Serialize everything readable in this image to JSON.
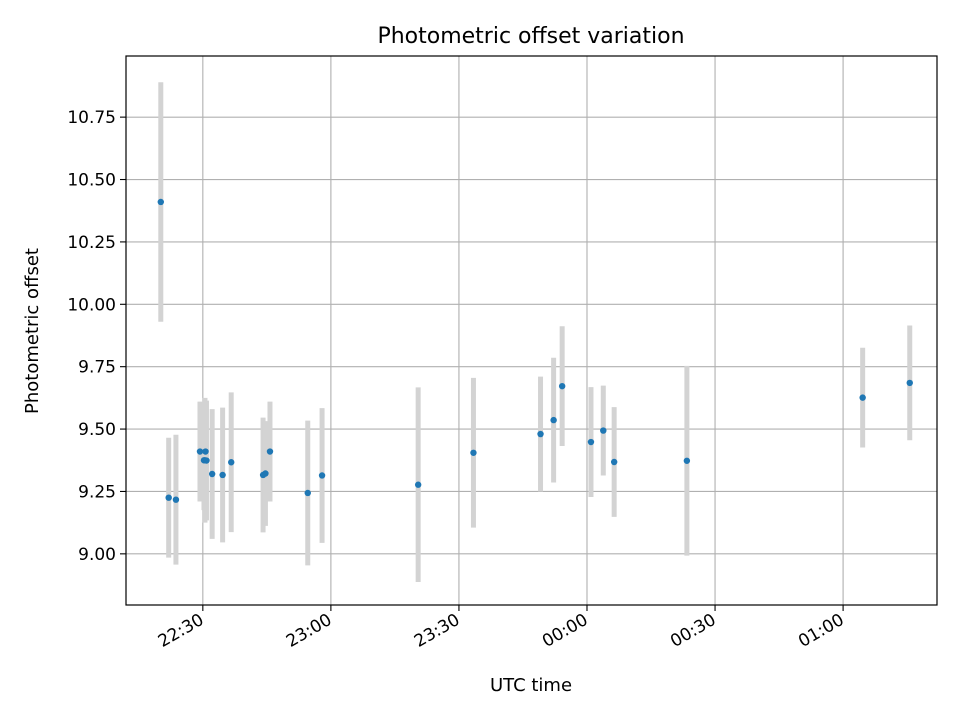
{
  "chart_data": {
    "type": "scatter",
    "title": "Photometric offset variation",
    "xlabel": "UTC time",
    "ylabel": "Photometric offset",
    "grid": true,
    "legend": "none",
    "xlim": [
      "22:12",
      "01:22"
    ],
    "ylim": [
      8.795,
      10.995
    ],
    "xticks": [
      "22:30",
      "23:00",
      "23:30",
      "00:00",
      "00:30",
      "01:00"
    ],
    "yticks": [
      "9.00",
      "9.25",
      "9.50",
      "9.75",
      "10.00",
      "10.25",
      "10.50",
      "10.75"
    ],
    "series": [
      {
        "marker_color": "#1f77b4",
        "errorbar_color": "#d3d3d3",
        "points": [
          {
            "x": "22:20:09",
            "y": 10.41,
            "yerr": 0.48
          },
          {
            "x": "22:22:00",
            "y": 9.225,
            "yerr": 0.24
          },
          {
            "x": "22:23:42",
            "y": 9.217,
            "yerr": 0.26
          },
          {
            "x": "22:29:20",
            "y": 9.41,
            "yerr": 0.2
          },
          {
            "x": "22:30:16",
            "y": 9.375,
            "yerr": 0.2
          },
          {
            "x": "22:30:38",
            "y": 9.41,
            "yerr": 0.2
          },
          {
            "x": "22:30:30",
            "y": 9.375,
            "yerr": 0.25
          },
          {
            "x": "22:30:51",
            "y": 9.374,
            "yerr": 0.24
          },
          {
            "x": "22:32:11",
            "y": 9.32,
            "yerr": 0.26
          },
          {
            "x": "22:34:38",
            "y": 9.316,
            "yerr": 0.27
          },
          {
            "x": "22:36:39",
            "y": 9.367,
            "yerr": 0.28
          },
          {
            "x": "22:44:07",
            "y": 9.316,
            "yerr": 0.23
          },
          {
            "x": "22:44:40",
            "y": 9.322,
            "yerr": 0.21
          },
          {
            "x": "22:45:44",
            "y": 9.41,
            "yerr": 0.2
          },
          {
            "x": "22:54:35",
            "y": 9.244,
            "yerr": 0.29
          },
          {
            "x": "22:57:56",
            "y": 9.314,
            "yerr": 0.27
          },
          {
            "x": "23:20:27",
            "y": 9.277,
            "yerr": 0.39
          },
          {
            "x": "23:33:24",
            "y": 9.405,
            "yerr": 0.3
          },
          {
            "x": "23:49:07",
            "y": 9.48,
            "yerr": 0.23
          },
          {
            "x": "23:52:11",
            "y": 9.536,
            "yerr": 0.25
          },
          {
            "x": "23:54:11",
            "y": 9.672,
            "yerr": 0.24
          },
          {
            "x": "00:00:56",
            "y": 9.448,
            "yerr": 0.22
          },
          {
            "x": "00:03:49",
            "y": 9.494,
            "yerr": 0.18
          },
          {
            "x": "00:06:22",
            "y": 9.368,
            "yerr": 0.22
          },
          {
            "x": "00:23:24",
            "y": 9.373,
            "yerr": 0.38
          },
          {
            "x": "01:04:35",
            "y": 9.626,
            "yerr": 0.2
          },
          {
            "x": "01:15:37",
            "y": 9.685,
            "yerr": 0.23
          }
        ]
      }
    ]
  }
}
